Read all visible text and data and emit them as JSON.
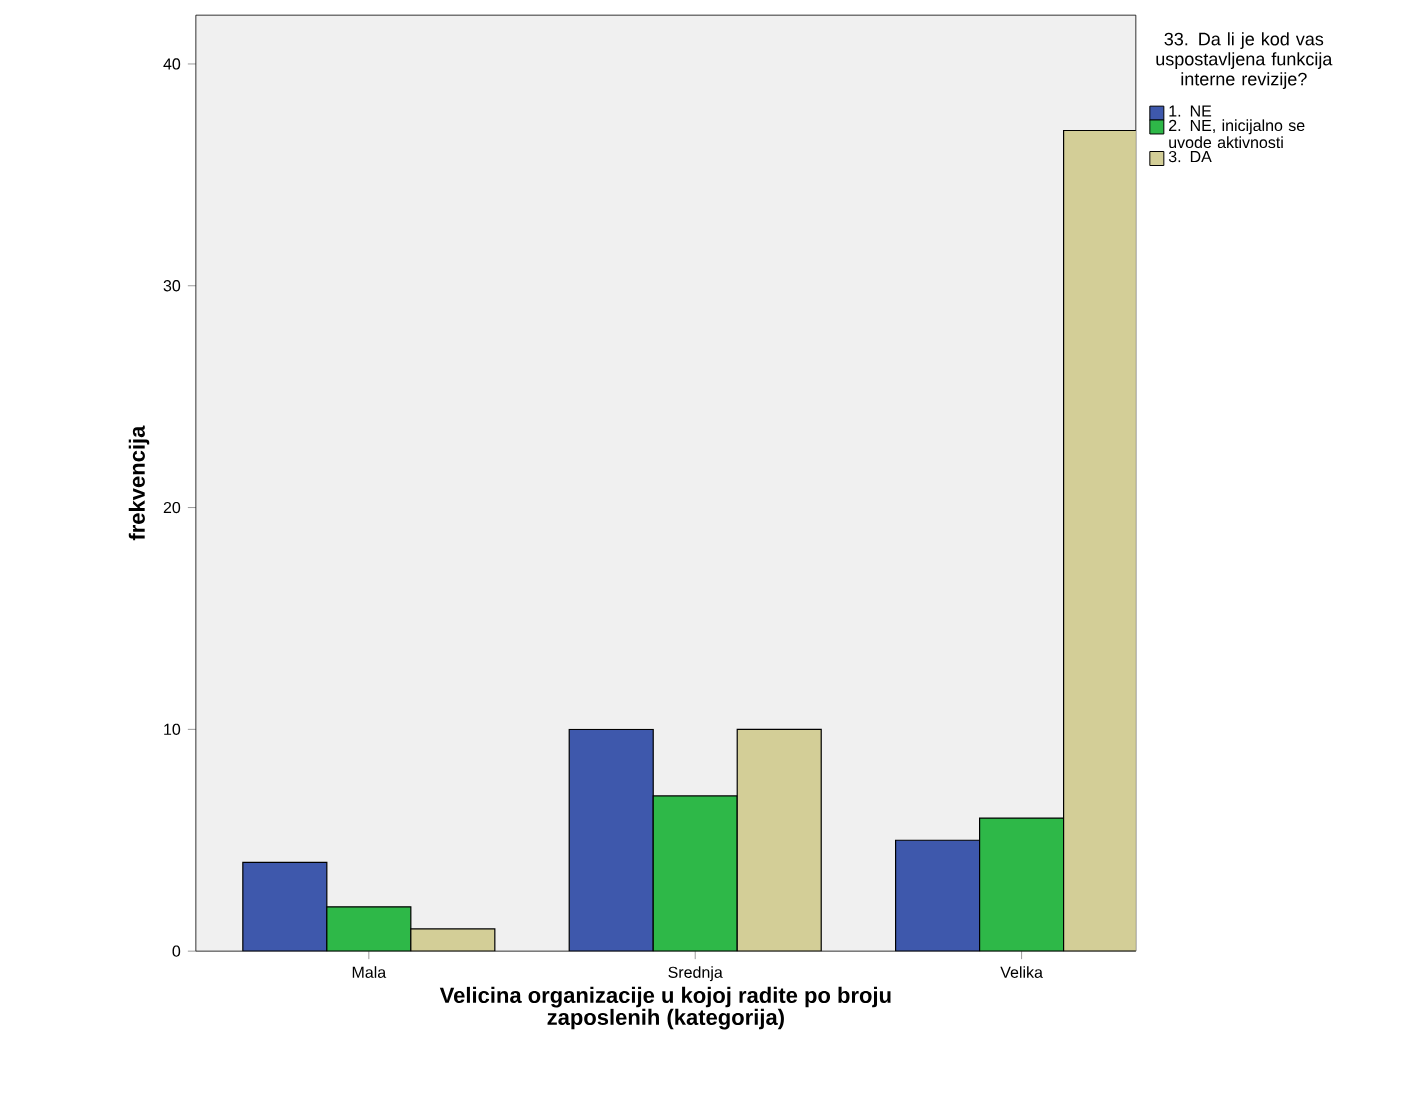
{
  "chart_data": {
    "type": "bar",
    "xlabel": "Velicina organizacije u kojoj radite po broju zaposlenih (kategorija)",
    "ylabel": "frekvencija",
    "legend_title": "33. Da li je kod vas uspostavljena funkcija interne revizije?",
    "categories": [
      "Mala",
      "Srednja",
      "Velika"
    ],
    "series": [
      {
        "name": "1. NE",
        "color": "#3e58ac",
        "values": [
          4,
          10,
          5
        ]
      },
      {
        "name": "2. NE, inicijalno se uvode aktivnosti",
        "color": "#2eb848",
        "values": [
          2,
          7,
          6
        ]
      },
      {
        "name": "3. DA",
        "color": "#d3ce97",
        "values": [
          1,
          10,
          37
        ]
      }
    ],
    "ylim": [
      0,
      42.2
    ],
    "yticks": [
      0,
      10,
      20,
      30,
      40
    ],
    "legend": "top right",
    "grid": false
  }
}
